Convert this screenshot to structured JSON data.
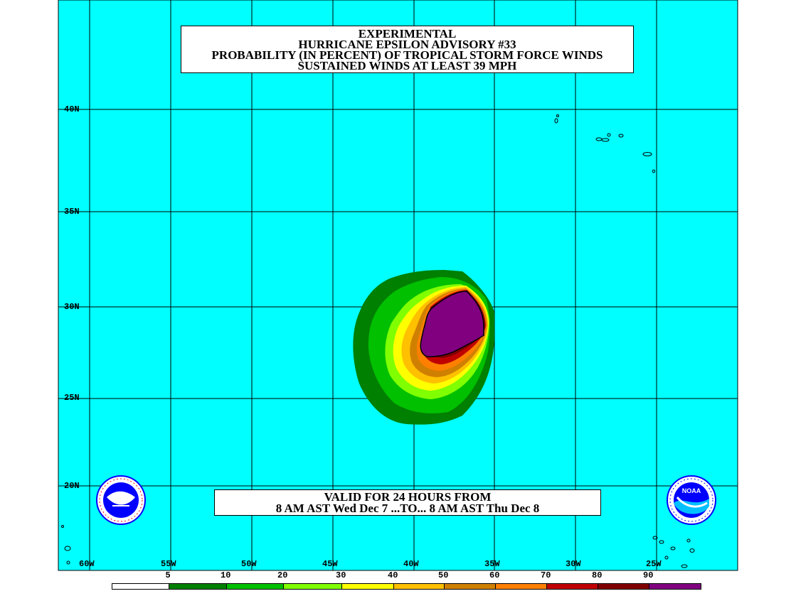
{
  "title": {
    "lines": [
      "EXPERIMENTAL",
      "HURRICANE EPSILON ADVISORY #33",
      "PROBABILITY (IN PERCENT) OF TROPICAL STORM FORCE WINDS",
      "SUSTAINED WINDS AT LEAST 39 MPH"
    ]
  },
  "valid": {
    "lines": [
      "VALID FOR 24 HOURS FROM",
      "8 AM AST Wed Dec 7 ...TO... 8 AM AST Thu Dec 8"
    ]
  },
  "lat_labels": [
    "40N",
    "35N",
    "30N",
    "25N",
    "20N"
  ],
  "lon_labels": [
    "60W",
    "55W",
    "50W",
    "45W",
    "40W",
    "35W",
    "30W",
    "25W"
  ],
  "legend": {
    "labels": [
      "5",
      "10",
      "20",
      "30",
      "40",
      "50",
      "60",
      "70",
      "80",
      "90"
    ],
    "colors": [
      "#ffffff",
      "#008000",
      "#00c000",
      "#80ff00",
      "#ffff00",
      "#ffc000",
      "#d08000",
      "#ff8000",
      "#c00000",
      "#800000",
      "#800080"
    ]
  },
  "colors": {
    "ocean": "#00ffff",
    "grid": "#000000"
  },
  "icons": [
    "nws-logo-icon",
    "noaa-logo-icon"
  ]
}
